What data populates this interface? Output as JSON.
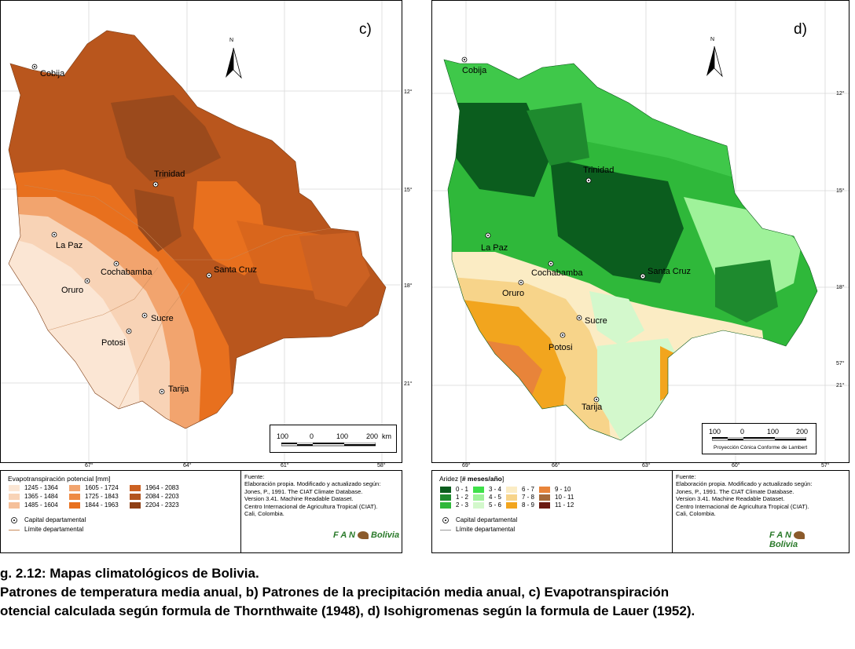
{
  "left_map": {
    "panel_letter": "c)",
    "north_label": "N",
    "cities": [
      "Cobija",
      "Trinidad",
      "La Paz",
      "Cochabamba",
      "Santa Cruz",
      "Oruro",
      "Sucre",
      "Potosi",
      "Tarija"
    ],
    "lat_ticks": [
      "12°",
      "15°",
      "18°",
      "21°"
    ],
    "lon_ticks": [
      "67°",
      "64°",
      "61°",
      "58°"
    ],
    "scale_labels": [
      "100",
      "0",
      "100",
      "200",
      "km"
    ],
    "legend_title": "Evapotranspiración potencial [mm]",
    "legend_classes": [
      {
        "label": "1245 - 1364",
        "color": "#fbe6d4"
      },
      {
        "label": "1365 - 1484",
        "color": "#f8d3b6"
      },
      {
        "label": "1485 - 1604",
        "color": "#f5c09a"
      },
      {
        "label": "1605 - 1724",
        "color": "#f2a46e"
      },
      {
        "label": "1725 - 1843",
        "color": "#ee8a44"
      },
      {
        "label": "1844 - 1963",
        "color": "#e8701e"
      },
      {
        "label": "1964 - 2083",
        "color": "#cc6122"
      },
      {
        "label": "2084 - 2203",
        "color": "#b2541f"
      },
      {
        "label": "2204 - 2323",
        "color": "#8f4015"
      }
    ],
    "capital_label": "Capital departamental",
    "limit_label": "Límite departamental"
  },
  "right_map": {
    "panel_letter": "d)",
    "north_label": "N",
    "cities": [
      "Cobija",
      "Trinidad",
      "La Paz",
      "Cochabamba",
      "Santa Cruz",
      "Oruro",
      "Sucre",
      "Potosi",
      "Tarija"
    ],
    "lat_ticks": [
      "12°",
      "15°",
      "18°",
      "21°"
    ],
    "lat_tick_extra": "57°",
    "lon_ticks": [
      "69°",
      "66°",
      "63°",
      "60°",
      "57°"
    ],
    "scale_labels": [
      "100",
      "0",
      "100",
      "200",
      "km"
    ],
    "projection": "Proyección Cónica Conforme de Lambert",
    "legend_title_prefix": "Aridez [",
    "legend_title_bold": "# meses/año",
    "legend_title_suffix": "]",
    "legend_classes": [
      {
        "label": "0 - 1",
        "color": "#0b5d1e"
      },
      {
        "label": "1 - 2",
        "color": "#1e8a2e"
      },
      {
        "label": "2 - 3",
        "color": "#2fb83a"
      },
      {
        "label": "3 - 4",
        "color": "#3fe04a"
      },
      {
        "label": "4 - 5",
        "color": "#9ff29a"
      },
      {
        "label": "5 - 6",
        "color": "#d3f8cc"
      },
      {
        "label": "6 - 7",
        "color": "#fbecc4"
      },
      {
        "label": "7 - 8",
        "color": "#f7d48a"
      },
      {
        "label": "8 - 9",
        "color": "#f2a51e"
      },
      {
        "label": "9 - 10",
        "color": "#e8843a"
      },
      {
        "label": "10 - 11",
        "color": "#a66a3a"
      },
      {
        "label": "11 - 12",
        "color": "#6a1a12"
      }
    ],
    "capital_label": "Capital departamental",
    "limit_label": "Límite departamental"
  },
  "source": {
    "lines": [
      "Fuente:",
      "Elaboración propia. Modificado y actualizado según:",
      "Jones, P., 1991. The CIAT Climate Database.",
      "Version 3.41. Machine Readable Dataset.",
      "Centro Internacional de Agricultura Tropical (CIAT).",
      "Cali, Colombia."
    ],
    "logo_left": "F A N",
    "logo_right": "Bolivia"
  },
  "caption": {
    "line1": "g. 2.12: Mapas climatológicos de Bolivia.",
    "line2": " Patrones de temperatura media anual, b) Patrones de la precipitación media anual, c) Evapotranspiración",
    "line3": "otencial calculada según formula de Thornthwaite (1948), d) Isohigromenas según la formula de Lauer (1952)."
  }
}
